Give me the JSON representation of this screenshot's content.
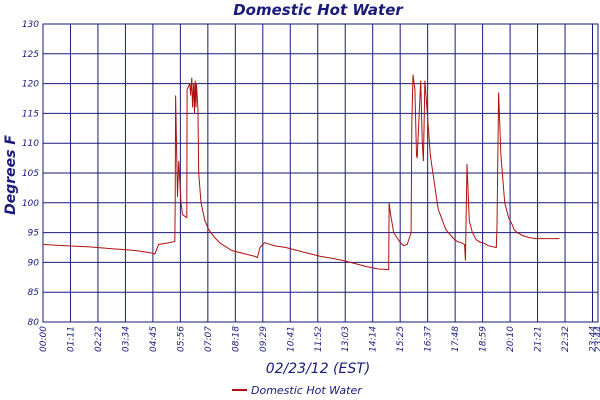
{
  "chart_data": {
    "type": "line",
    "title": "Domestic Hot Water",
    "xlabel": "02/23/12 (EST)",
    "ylabel": "Degrees F",
    "ylim": [
      80,
      130
    ],
    "yticks": [
      80,
      85,
      90,
      95,
      100,
      105,
      110,
      115,
      120,
      125,
      130
    ],
    "x_tick_labels": [
      "00:00",
      "01:11",
      "02:22",
      "03:34",
      "04:45",
      "05:56",
      "07:07",
      "08:18",
      "09:29",
      "10:41",
      "11:52",
      "13:03",
      "14:14",
      "15:25",
      "16:37",
      "17:48",
      "18:59",
      "20:10",
      "21:21",
      "22:32",
      "23:44",
      "23:44"
    ],
    "x_unit": "minutes after midnight",
    "xlim": [
      0,
      1440
    ],
    "grid": true,
    "legend_position": "bottom-center",
    "series": [
      {
        "name": "Domestic Hot Water",
        "color": "#b01010",
        "x": [
          0,
          60,
          120,
          180,
          240,
          280,
          290,
          300,
          320,
          342,
          343,
          344,
          349,
          352,
          358,
          362,
          373,
          374,
          381,
          383,
          386,
          388,
          391,
          393,
          395,
          397,
          398,
          402,
          404,
          410,
          420,
          430,
          445,
          460,
          490,
          520,
          550,
          556,
          563,
          575,
          600,
          630,
          660,
          690,
          720,
          750,
          780,
          810,
          840,
          870,
          897,
          898,
          902,
          910,
          925,
          935,
          945,
          955,
          957,
          960,
          965,
          969,
          971,
          980,
          984,
          987,
          991,
          997,
          1005,
          1025,
          1045,
          1065,
          1075,
          1085,
          1094,
          1096,
          1100,
          1106,
          1114,
          1124,
          1134,
          1145,
          1155,
          1176,
          1178,
          1182,
          1188,
          1198,
          1208,
          1216,
          1218,
          1222,
          1230,
          1245,
          1260,
          1276,
          1287,
          1290,
          1294,
          1302,
          1312,
          1322,
          1332,
          1340
        ],
        "values": [
          93,
          92.8,
          92.6,
          92.3,
          92.0,
          91.6,
          91.4,
          93.0,
          93.2,
          93.5,
          100,
          118,
          101,
          107,
          100,
          98,
          97.5,
          119,
          120,
          118,
          121,
          116,
          120,
          115,
          120.5,
          116,
          120,
          116,
          105,
          100,
          97,
          95.5,
          94.2,
          93.2,
          92.0,
          91.5,
          91.0,
          90.8,
          92.5,
          93.3,
          92.8,
          92.5,
          92.0,
          91.5,
          91.0,
          90.7,
          90.3,
          89.8,
          89.3,
          88.9,
          88.8,
          100,
          98,
          95,
          93.5,
          92.8,
          93,
          95,
          113,
          121.5,
          119,
          108,
          107.5,
          120.5,
          110,
          107,
          120.5,
          115,
          108,
          99,
          95.5,
          94,
          93.5,
          93.3,
          93,
          90.3,
          106.5,
          97,
          95,
          93.8,
          93.4,
          93.2,
          92.8,
          92.5,
          96,
          118.5,
          108,
          100,
          97.5,
          96.5,
          96.3,
          95.5,
          95,
          94.5,
          94.2,
          94,
          94,
          94,
          94,
          94,
          94,
          94,
          94,
          94
        ]
      }
    ]
  }
}
